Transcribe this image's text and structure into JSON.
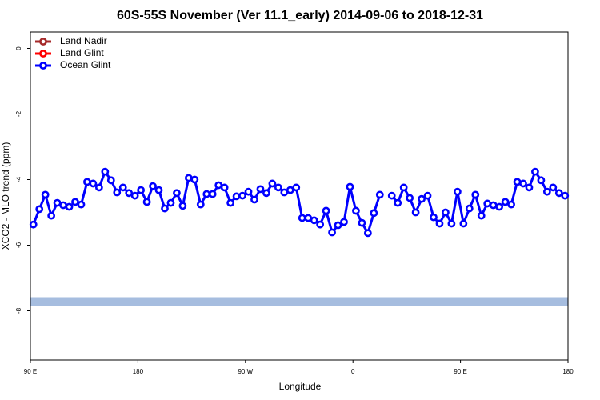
{
  "chart_data": {
    "type": "line",
    "title": "60S-55S November (Ver 11.1_early)   2014-09-06 to 2018-12-31",
    "xlabel": "Longitude",
    "ylabel": "XCO2 - MLO trend (ppm)",
    "xlim": [
      90,
      540
    ],
    "ylim": [
      -9.5,
      0.5
    ],
    "xticks": [
      {
        "value": 90,
        "label": "90 E"
      },
      180,
      {
        "value": 270,
        "label": "90 W"
      },
      {
        "value": 360,
        "label": "0"
      },
      {
        "value": 450,
        "label": "90 E"
      },
      {
        "value": 540,
        "label": "180"
      }
    ],
    "yticks": [
      0,
      -2,
      -4,
      -6,
      -8
    ],
    "legend": "top-left",
    "reference_line": {
      "value": -7.72,
      "color": "#a6bddf"
    },
    "x": [
      92.5,
      97.5,
      102.5,
      107.5,
      112.5,
      117.5,
      122.5,
      127.5,
      132.5,
      137.5,
      142.5,
      147.5,
      152.5,
      157.5,
      162.5,
      167.5,
      172.5,
      177.5,
      182.5,
      187.5,
      192.5,
      197.5,
      202.5,
      207.5,
      212.5,
      217.5,
      222.5,
      227.5,
      232.5,
      237.5,
      242.5,
      247.5,
      252.5,
      257.5,
      262.5,
      267.5,
      272.5,
      277.5,
      282.5,
      287.5,
      292.5,
      297.5,
      302.5,
      307.5,
      312.5,
      317.5,
      322.5,
      327.5,
      332.5,
      337.5,
      342.5,
      347.5,
      352.5,
      357.5,
      362.5,
      367.5,
      372.5,
      377.5,
      382.5,
      387.5,
      392.5,
      397.5,
      402.5,
      407.5,
      412.5,
      417.5,
      422.5,
      427.5,
      432.5,
      437.5,
      442.5,
      447.5,
      452.5,
      457.5,
      462.5,
      467.5,
      472.5,
      477.5,
      482.5,
      487.5,
      492.5,
      497.5,
      502.5,
      507.5,
      512.5,
      517.5,
      522.5,
      527.5,
      532.5,
      537.5
    ],
    "series": [
      {
        "name": "Land Nadir",
        "color": "#a52a2a",
        "values": [
          null,
          null,
          null,
          null,
          null,
          null,
          null,
          null,
          null,
          null,
          null,
          null,
          null,
          null,
          null,
          null,
          null,
          null,
          null,
          null,
          null,
          null,
          null,
          null,
          null,
          null,
          null,
          null,
          null,
          null,
          null,
          null,
          null,
          null,
          null,
          null,
          null,
          null,
          null,
          null,
          null,
          null,
          null,
          null,
          null,
          null,
          null,
          null,
          null,
          null,
          null,
          null,
          null,
          null,
          null,
          null,
          null,
          null,
          null,
          null,
          null,
          null,
          null,
          null,
          null,
          null,
          null,
          null,
          null,
          null,
          null,
          null,
          null,
          null,
          null,
          null,
          null,
          null,
          null,
          null,
          null,
          null,
          null,
          null,
          null,
          null,
          null,
          null,
          null,
          null
        ]
      },
      {
        "name": "Land Glint",
        "color": "#ff0000",
        "values": [
          null,
          null,
          null,
          null,
          null,
          null,
          null,
          null,
          null,
          null,
          null,
          null,
          null,
          null,
          null,
          null,
          null,
          null,
          null,
          null,
          null,
          null,
          null,
          null,
          null,
          null,
          null,
          null,
          null,
          null,
          null,
          null,
          null,
          null,
          null,
          null,
          null,
          null,
          null,
          null,
          null,
          null,
          null,
          null,
          null,
          null,
          null,
          null,
          null,
          null,
          null,
          null,
          null,
          null,
          null,
          null,
          null,
          null,
          null,
          null,
          null,
          null,
          null,
          null,
          null,
          null,
          null,
          null,
          null,
          null,
          null,
          null,
          null,
          null,
          null,
          null,
          null,
          null,
          null,
          null,
          null,
          null,
          null,
          null,
          null,
          null,
          null,
          null,
          null,
          null
        ]
      },
      {
        "name": "Ocean Glint",
        "color": "#0000ff",
        "values": [
          -5.37,
          -4.9,
          -4.46,
          -5.1,
          -4.71,
          -4.78,
          -4.83,
          -4.68,
          -4.76,
          -4.07,
          -4.12,
          -4.24,
          -3.76,
          -4.02,
          -4.39,
          -4.24,
          -4.41,
          -4.49,
          -4.32,
          -4.68,
          -4.2,
          -4.32,
          -4.88,
          -4.71,
          -4.41,
          -4.8,
          -3.95,
          -4.0,
          -4.76,
          -4.44,
          -4.44,
          -4.17,
          -4.24,
          -4.71,
          -4.51,
          -4.49,
          -4.37,
          -4.61,
          -4.29,
          -4.41,
          -4.12,
          -4.24,
          -4.39,
          -4.32,
          -4.24,
          -5.17,
          -5.17,
          -5.24,
          -5.37,
          -4.95,
          -5.61,
          -5.39,
          -5.29,
          -4.22,
          -4.95,
          -5.32,
          -5.63,
          -5.02,
          -4.46,
          null,
          -4.49,
          -4.71,
          -4.24,
          -4.56,
          -5.0,
          -4.59,
          -4.49,
          -5.15,
          -5.34,
          -5.0,
          -5.34,
          -4.37,
          -5.34,
          -4.88,
          -4.46,
          -5.1,
          -4.73,
          -4.78,
          -4.83,
          -4.68,
          -4.76,
          -4.07,
          -4.12,
          -4.24,
          -3.76,
          -4.02,
          -4.37,
          -4.24,
          -4.41,
          -4.49
        ]
      }
    ]
  }
}
